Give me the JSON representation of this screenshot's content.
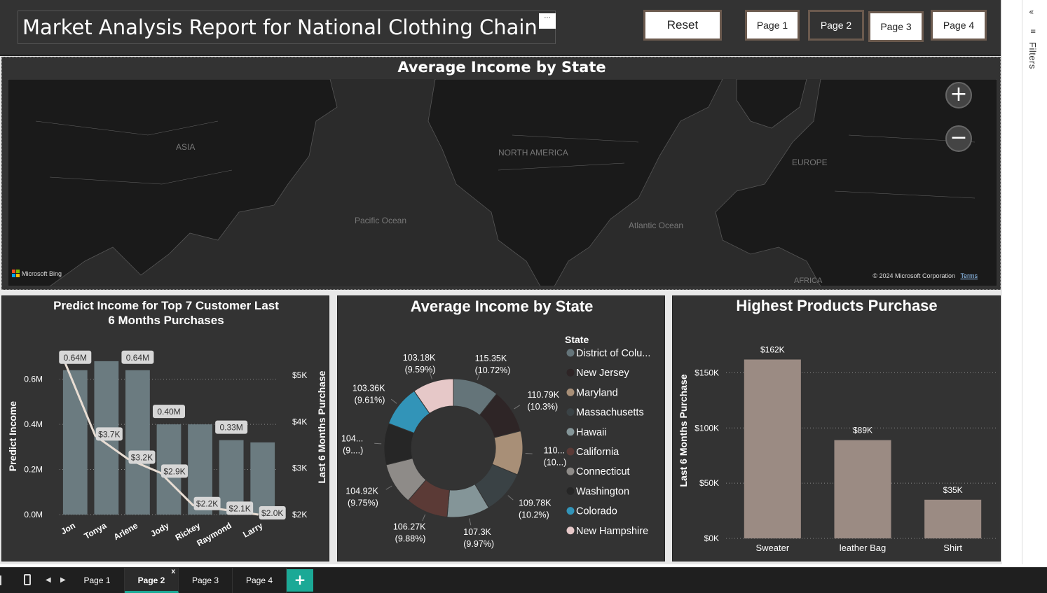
{
  "header": {
    "title": "Market Analysis Report for National Clothing Chain",
    "more_label": "···",
    "buttons": [
      "Reset",
      "Page 1",
      "Page 2",
      "Page 3",
      "Page 4"
    ]
  },
  "map": {
    "title": "Average Income by State",
    "labels": {
      "asia": "ASIA",
      "north_america": "NORTH AMERICA",
      "europe": "EUROPE",
      "pacific": "Pacific Ocean",
      "atlantic": "Atlantic Ocean",
      "africa": "AFRICA"
    },
    "zoom_in": "+",
    "zoom_out": "−",
    "bing": "Microsoft Bing",
    "copyright": "© 2024 Microsoft Corporation",
    "terms": "Terms"
  },
  "chart_data": [
    {
      "type": "bar",
      "title": "Predict Income for Top 7 Customer Last 6 Months Purchases",
      "ylabel": "Predict Income",
      "y2label": "Last 6 Months Purchase",
      "categories": [
        "Jon",
        "Tonya",
        "Arlene",
        "Jody",
        "Rickey",
        "Raymond",
        "Larry"
      ],
      "series": [
        {
          "name": "Predict Income",
          "type": "bar",
          "values": [
            0.64,
            0.68,
            0.64,
            0.4,
            0.4,
            0.33,
            0.32
          ],
          "labels": [
            "0.64M",
            "",
            "0.64M",
            "0.40M",
            "",
            "0.33M",
            ""
          ]
        },
        {
          "name": "Last 6 Months Purchase",
          "type": "line",
          "values": [
            5.4,
            3.7,
            3.2,
            2.9,
            2.2,
            2.1,
            2.0
          ],
          "labels": [
            "",
            "$3.7K",
            "$3.2K",
            "$2.9K",
            "$2.2K",
            "$2.1K",
            "$2.0K"
          ]
        }
      ],
      "yticks": [
        "0.0M",
        "0.2M",
        "0.4M",
        "0.6M"
      ],
      "ylim": [
        0,
        0.72
      ],
      "y2ticks": [
        "$2K",
        "$3K",
        "$4K",
        "$5K"
      ],
      "y2lim": [
        2,
        5.5
      ],
      "colors": {
        "bar": "#6b7b80",
        "line": "#e8ddd3"
      },
      "grid": true
    },
    {
      "type": "pie",
      "title": "Average Income by State",
      "legend_title": "State",
      "slices": [
        {
          "name": "District of Colu...",
          "value": 115.35,
          "label": "115.35K (10.72%)",
          "color": "#647479"
        },
        {
          "name": "New Jersey",
          "value": 110.79,
          "label": "110.79K (10.3%)",
          "color": "#2e2526"
        },
        {
          "name": "Maryland",
          "value": 110.5,
          "label": "110... (10...)",
          "color": "#a88f77"
        },
        {
          "name": "Massachusetts",
          "value": 109.78,
          "label": "109.78K (10.2%)",
          "color": "#3a4245"
        },
        {
          "name": "Hawaii",
          "value": 107.3,
          "label": "107.3K (9.97%)",
          "color": "#849598"
        },
        {
          "name": "California",
          "value": 106.27,
          "label": "106.27K (9.88%)",
          "color": "#5b3a36"
        },
        {
          "name": "Connecticut",
          "value": 104.92,
          "label": "104.92K (9.75%)",
          "color": "#8e8b88"
        },
        {
          "name": "Washington",
          "value": 104.5,
          "label": "104... (9....)",
          "color": "#262626"
        },
        {
          "name": "Colorado",
          "value": 103.36,
          "label": "103.36K (9.61%)",
          "color": "#3294b8"
        },
        {
          "name": "New Hampshire",
          "value": 103.18,
          "label": "103.18K (9.59%)",
          "color": "#e6c8c8"
        }
      ]
    },
    {
      "type": "bar",
      "title": "Highest Products Purchase",
      "ylabel": "Last 6 Months Purchase",
      "categories": [
        "Sweater",
        "leather Bag",
        "Shirt"
      ],
      "values": [
        162,
        89,
        35
      ],
      "labels": [
        "$162K",
        "$89K",
        "$35K"
      ],
      "yticks": [
        "$0K",
        "$50K",
        "$100K",
        "$150K"
      ],
      "ylim": [
        0,
        175
      ],
      "colors": {
        "bar": "#9b8b83"
      },
      "grid": true
    }
  ],
  "right_rail": {
    "filters": "Filters",
    "collapse": "«",
    "filter_glyph": "≡"
  },
  "tabs": {
    "items": [
      "Page 1",
      "Page 2",
      "Page 3",
      "Page 4"
    ],
    "active_index": 1,
    "close": "x",
    "add": "+",
    "prev": "◀",
    "next": "▶"
  }
}
